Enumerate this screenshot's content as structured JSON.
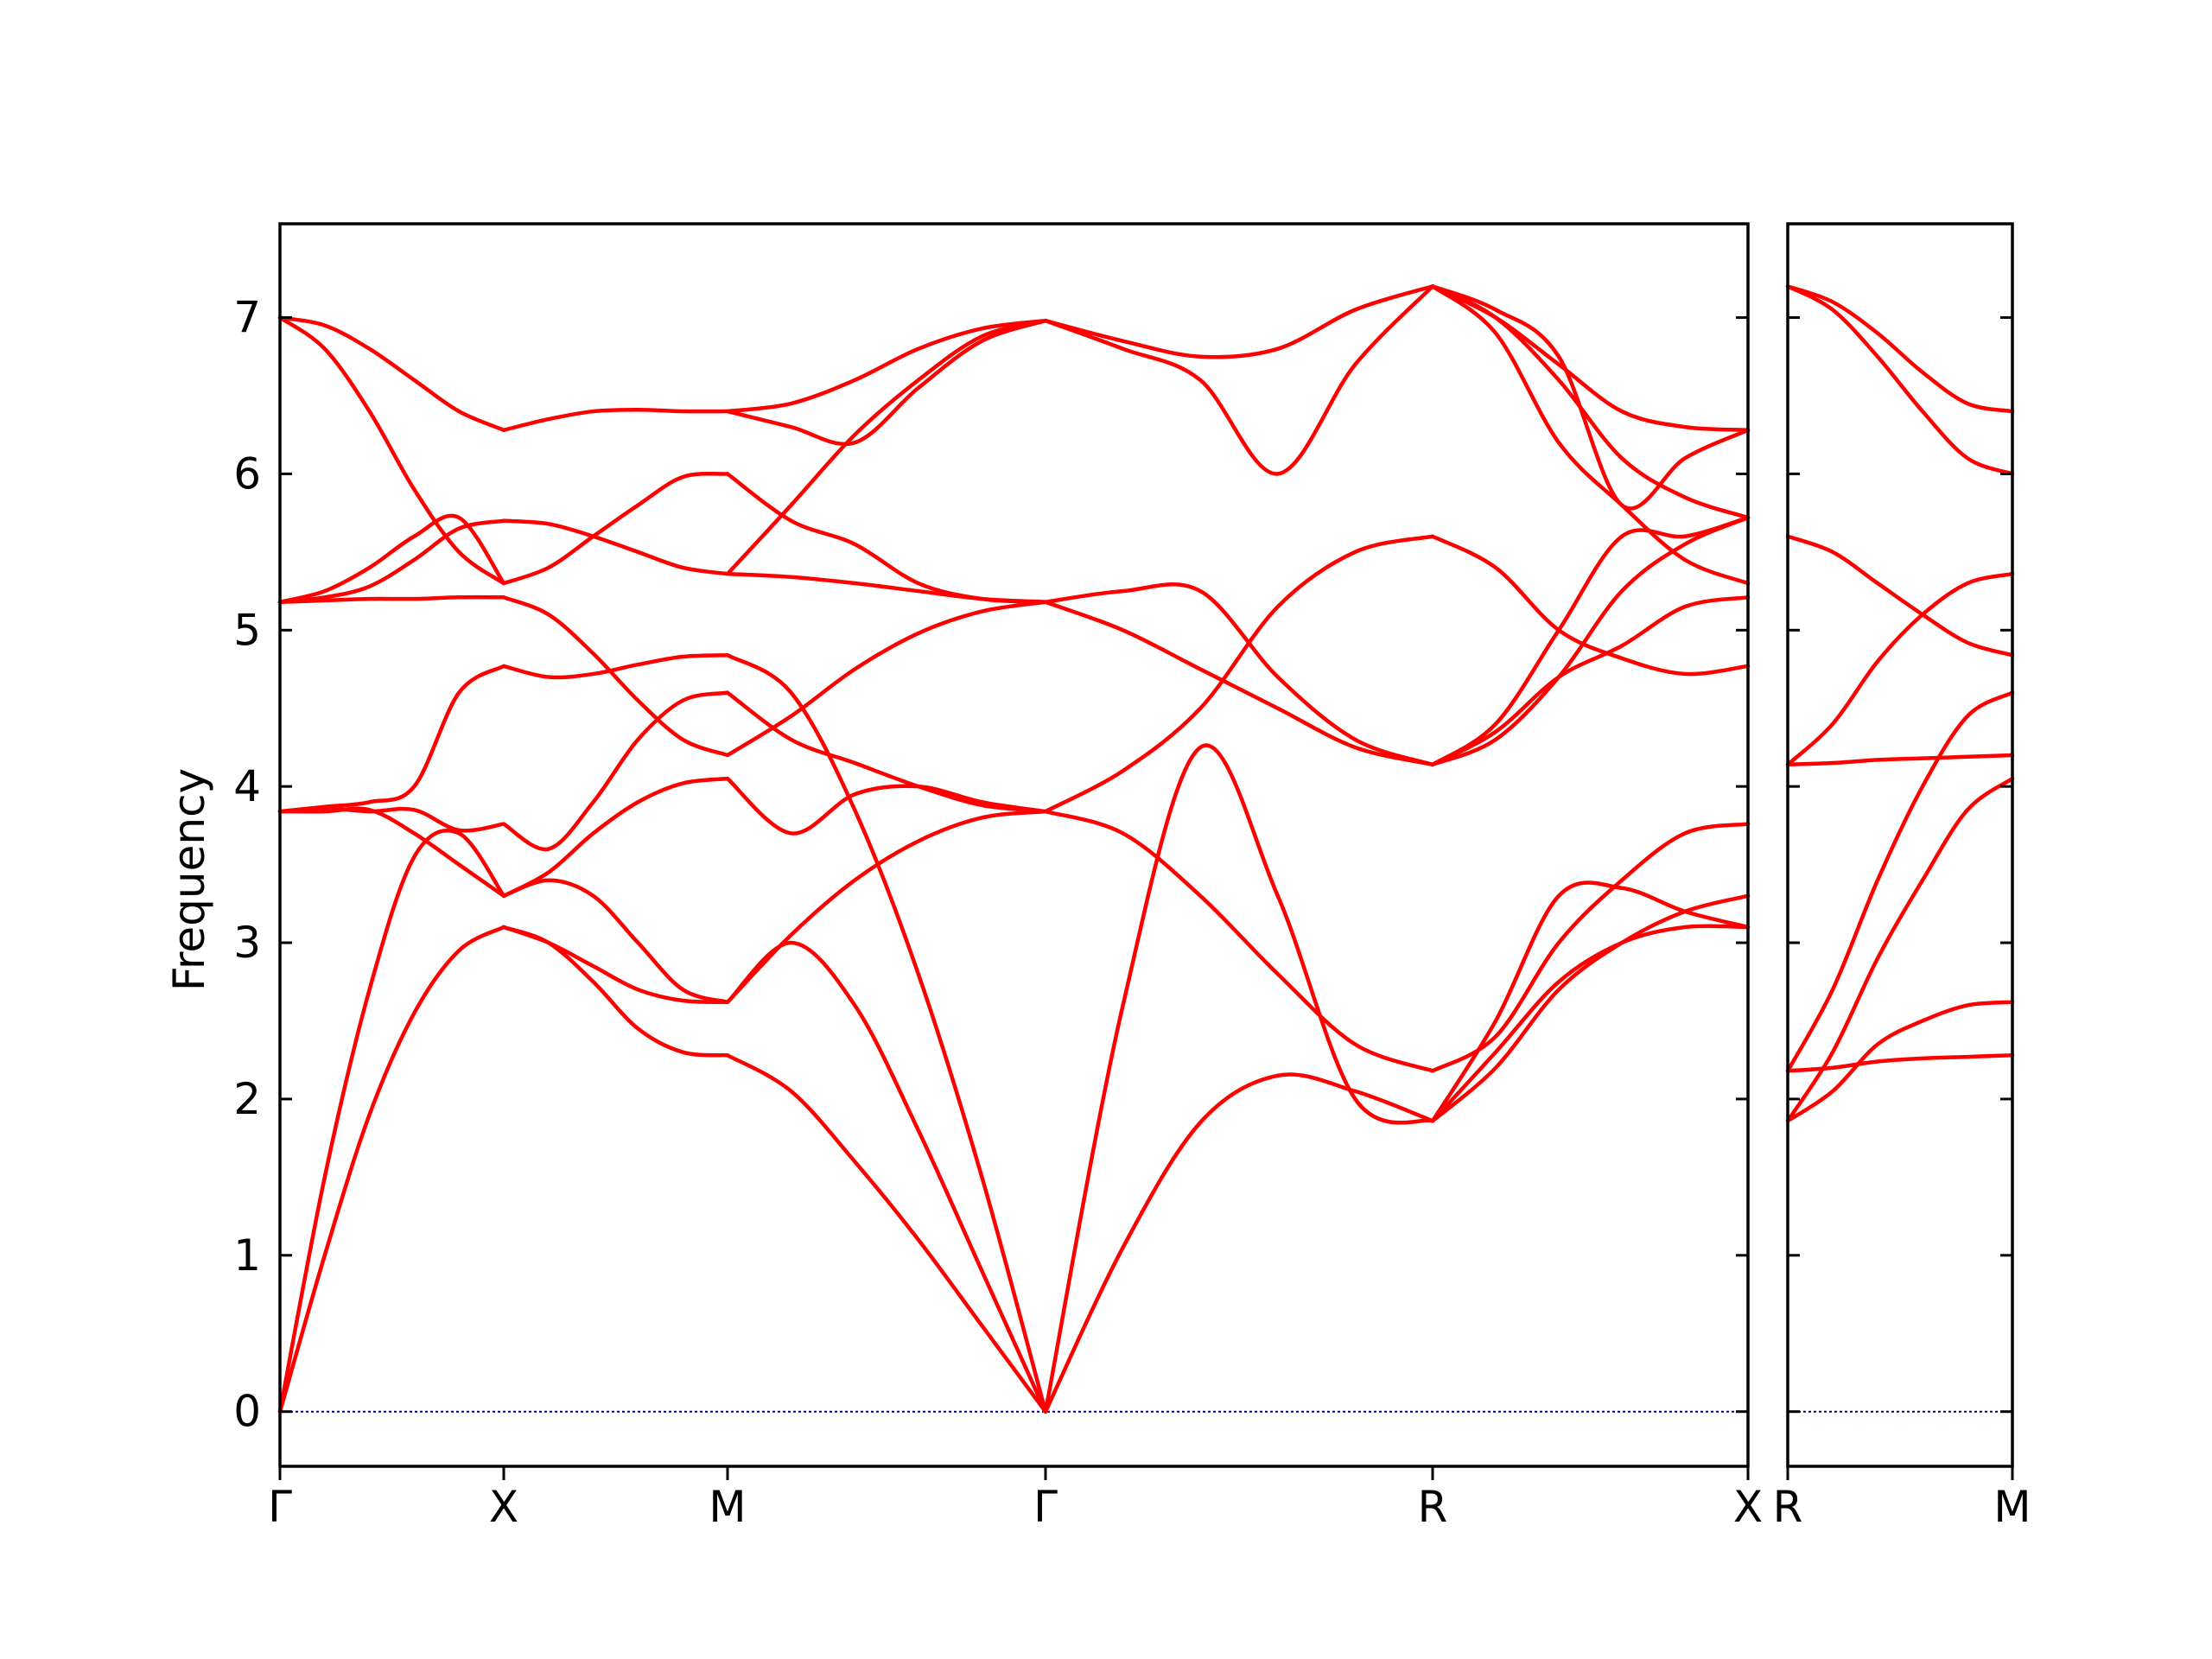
{
  "chart_data": {
    "type": "line",
    "ylabel": "Frequency",
    "ylim": [
      -0.35,
      7.6
    ],
    "y_ticks": [
      "0",
      "1",
      "2",
      "3",
      "4",
      "5",
      "6",
      "7"
    ],
    "x_ticks": [
      "Γ",
      "X",
      "M",
      "Γ",
      "R",
      "X",
      "R",
      "M"
    ],
    "grid": false,
    "line_color": "#ff0000",
    "zero_line_color": "#00008b",
    "panels": [
      {
        "path": [
          "Γ",
          "X",
          "M",
          "Γ",
          "R",
          "X"
        ],
        "segments": [
          {
            "from": "Γ",
            "to": "X",
            "x": [
              0,
              0.2,
              0.4,
              0.6,
              0.8,
              1
            ],
            "bands": [
              [
                0.0,
                1.0,
                1.9,
                2.55,
                2.95,
                3.1
              ],
              [
                0.0,
                1.5,
                2.7,
                3.55,
                3.7,
                3.3
              ],
              [
                3.84,
                3.86,
                3.84,
                3.85,
                3.72,
                3.76
              ],
              [
                3.84,
                3.84,
                3.85,
                3.7,
                3.5,
                3.3
              ],
              [
                3.84,
                3.87,
                3.9,
                4.0,
                4.6,
                4.77
              ],
              [
                5.18,
                5.19,
                5.2,
                5.2,
                5.21,
                5.21
              ],
              [
                5.18,
                5.25,
                5.4,
                5.6,
                5.72,
                5.3
              ],
              [
                5.18,
                5.21,
                5.28,
                5.45,
                5.65,
                5.7
              ],
              [
                7.0,
                6.8,
                6.4,
                5.9,
                5.5,
                5.3
              ],
              [
                7.0,
                6.95,
                6.8,
                6.6,
                6.4,
                6.28
              ]
            ]
          },
          {
            "from": "X",
            "to": "M",
            "x": [
              0,
              0.2,
              0.4,
              0.6,
              0.8,
              1
            ],
            "bands": [
              [
                3.1,
                3.0,
                2.75,
                2.45,
                2.3,
                2.28
              ],
              [
                3.1,
                3.0,
                2.85,
                2.7,
                2.63,
                2.62
              ],
              [
                3.3,
                3.4,
                3.3,
                3.0,
                2.7,
                2.62
              ],
              [
                3.3,
                3.45,
                3.7,
                3.9,
                4.02,
                4.05
              ],
              [
                3.76,
                3.6,
                3.9,
                4.3,
                4.55,
                4.6
              ],
              [
                4.77,
                4.7,
                4.72,
                4.78,
                4.83,
                4.84
              ],
              [
                5.21,
                5.1,
                4.85,
                4.55,
                4.3,
                4.2
              ],
              [
                5.3,
                5.4,
                5.6,
                5.8,
                5.98,
                6.0
              ],
              [
                5.7,
                5.68,
                5.6,
                5.5,
                5.4,
                5.36
              ],
              [
                6.28,
                6.35,
                6.4,
                6.41,
                6.4,
                6.4
              ]
            ]
          },
          {
            "from": "M",
            "to": "Γ",
            "x": [
              0,
              0.2,
              0.4,
              0.6,
              0.8,
              1
            ],
            "bands": [
              [
                2.28,
                2.05,
                1.6,
                1.1,
                0.55,
                0.0
              ],
              [
                2.62,
                3.0,
                2.6,
                1.8,
                0.9,
                0.0
              ],
              [
                4.84,
                4.6,
                3.85,
                2.8,
                1.5,
                0.0
              ],
              [
                2.62,
                3.05,
                3.4,
                3.65,
                3.8,
                3.84
              ],
              [
                4.05,
                3.7,
                3.95,
                4.0,
                3.9,
                3.84
              ],
              [
                4.6,
                4.3,
                4.15,
                4.0,
                3.88,
                3.84
              ],
              [
                4.2,
                4.45,
                4.75,
                4.98,
                5.12,
                5.18
              ],
              [
                5.36,
                5.34,
                5.3,
                5.25,
                5.2,
                5.18
              ],
              [
                6.0,
                5.7,
                5.55,
                5.3,
                5.2,
                5.18
              ],
              [
                5.36,
                5.8,
                6.25,
                6.6,
                6.88,
                6.98
              ],
              [
                6.4,
                6.3,
                6.2,
                6.55,
                6.85,
                6.98
              ],
              [
                6.4,
                6.45,
                6.6,
                6.8,
                6.93,
                6.98
              ]
            ]
          },
          {
            "from": "Γ",
            "to": "R",
            "x": [
              0,
              0.2,
              0.4,
              0.6,
              0.8,
              1
            ],
            "bands": [
              [
                0.0,
                1.05,
                1.85,
                2.15,
                2.05,
                1.86
              ],
              [
                0.0,
                2.6,
                4.25,
                3.3,
                2.0,
                1.86
              ],
              [
                3.84,
                3.7,
                3.3,
                2.8,
                2.35,
                2.18
              ],
              [
                3.84,
                4.1,
                4.5,
                5.15,
                5.5,
                5.6
              ],
              [
                5.18,
                5.0,
                4.75,
                4.5,
                4.25,
                4.14
              ],
              [
                5.18,
                5.25,
                5.25,
                4.7,
                4.3,
                4.14
              ],
              [
                6.98,
                6.8,
                6.6,
                6.0,
                6.7,
                7.2
              ],
              [
                6.98,
                6.85,
                6.75,
                6.8,
                7.05,
                7.2
              ]
            ]
          },
          {
            "from": "R",
            "to": "X",
            "x": [
              0,
              0.2,
              0.4,
              0.6,
              0.8,
              1
            ],
            "bands": [
              [
                1.86,
                2.3,
                2.75,
                3.0,
                3.1,
                3.1
              ],
              [
                1.86,
                2.2,
                2.7,
                3.0,
                3.2,
                3.3
              ],
              [
                1.86,
                2.5,
                3.3,
                3.35,
                3.2,
                3.1
              ],
              [
                2.18,
                2.4,
                3.0,
                3.4,
                3.7,
                3.76
              ],
              [
                4.14,
                4.4,
                5.0,
                5.6,
                5.6,
                5.72
              ],
              [
                4.14,
                4.3,
                4.7,
                5.25,
                5.55,
                5.72
              ],
              [
                5.6,
                5.4,
                5.0,
                4.82,
                4.72,
                4.77
              ],
              [
                4.14,
                4.35,
                4.7,
                4.9,
                5.15,
                5.21
              ],
              [
                7.2,
                6.9,
                6.2,
                5.8,
                5.45,
                5.3
              ],
              [
                7.2,
                7.0,
                6.6,
                6.1,
                5.85,
                5.72
              ],
              [
                7.2,
                7.0,
                6.7,
                6.4,
                6.3,
                6.28
              ],
              [
                7.2,
                7.05,
                6.75,
                5.8,
                6.1,
                6.28
              ]
            ]
          }
        ]
      },
      {
        "path": [
          "R",
          "M"
        ],
        "segments": [
          {
            "from": "R",
            "to": "M",
            "x": [
              0,
              0.2,
              0.4,
              0.6,
              0.8,
              1
            ],
            "bands": [
              [
                2.18,
                2.2,
                2.24,
                2.26,
                2.27,
                2.28
              ],
              [
                1.86,
                2.05,
                2.35,
                2.5,
                2.6,
                2.62
              ],
              [
                1.86,
                2.3,
                2.9,
                3.4,
                3.85,
                4.05
              ],
              [
                2.18,
                2.7,
                3.4,
                4.0,
                4.45,
                4.6
              ],
              [
                4.14,
                4.15,
                4.17,
                4.18,
                4.19,
                4.2
              ],
              [
                4.14,
                4.4,
                4.8,
                5.1,
                5.3,
                5.36
              ],
              [
                5.6,
                5.5,
                5.3,
                5.1,
                4.92,
                4.84
              ],
              [
                7.2,
                7.05,
                6.75,
                6.4,
                6.1,
                6.0
              ],
              [
                7.2,
                7.1,
                6.9,
                6.65,
                6.45,
                6.4
              ]
            ]
          }
        ]
      }
    ]
  }
}
